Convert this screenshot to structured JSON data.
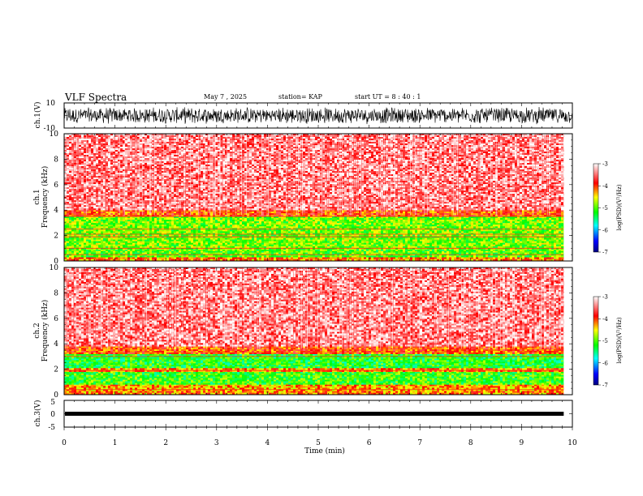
{
  "header": {
    "title": "VLF Spectra",
    "date": "May 7  , 2025",
    "station": "station= KAP",
    "start_time": "start  UT  =   8  : 40 : 1"
  },
  "chart_data": [
    {
      "type": "line",
      "panel": "ch1-waveform",
      "ylabel": "ch.1(V)",
      "ylim": [
        -10,
        10
      ],
      "yticks": [
        "10",
        "-10"
      ],
      "xlim": [
        0,
        10
      ],
      "signal": "broadband noise, amplitude approx ±6 V"
    },
    {
      "type": "heatmap",
      "panel": "ch1-spectrogram",
      "ylabel": "ch.1\nFrequency (kHz)",
      "ylim": [
        0,
        10
      ],
      "yticks": [
        "0",
        "2",
        "4",
        "6",
        "8",
        "10"
      ],
      "xlim": [
        0,
        9.83
      ],
      "bands": [
        {
          "from": 0.0,
          "to": 0.3,
          "level": -4.2
        },
        {
          "from": 0.3,
          "to": 0.9,
          "level": -5.0
        },
        {
          "from": 0.9,
          "to": 3.5,
          "level": -4.9
        },
        {
          "from": 3.5,
          "to": 4.0,
          "level": -4.0
        },
        {
          "from": 4.0,
          "to": 10.0,
          "level": -3.4
        }
      ],
      "lines_khz": [
        0.5,
        1.0,
        1.9,
        2.1,
        2.5,
        3.5
      ],
      "colorbar": {
        "label": "log(PSD)(V²/Hz)",
        "range": [
          -7,
          -3
        ],
        "ticks": [
          "-3",
          "-4",
          "-5",
          "-6",
          "-7"
        ]
      }
    },
    {
      "type": "heatmap",
      "panel": "ch2-spectrogram",
      "ylabel": "ch.2\nFrequency (kHz)",
      "ylim": [
        0,
        10
      ],
      "yticks": [
        "0",
        "2",
        "4",
        "6",
        "8",
        "10"
      ],
      "xlim": [
        0,
        9.83
      ],
      "bands": [
        {
          "from": 0.0,
          "to": 0.3,
          "level": -4.2
        },
        {
          "from": 0.3,
          "to": 0.8,
          "level": -4.3
        },
        {
          "from": 0.8,
          "to": 1.8,
          "level": -5.1
        },
        {
          "from": 1.8,
          "to": 2.1,
          "level": -4.2
        },
        {
          "from": 2.1,
          "to": 3.2,
          "level": -5.2
        },
        {
          "from": 3.2,
          "to": 3.8,
          "level": -4.0
        },
        {
          "from": 3.8,
          "to": 10.0,
          "level": -3.4
        }
      ],
      "lines_khz": [
        0.4,
        1.9,
        3.0
      ],
      "colorbar": {
        "label": "log(PSD)(V²/Hz)",
        "range": [
          -7,
          -3
        ],
        "ticks": [
          "-3",
          "-4",
          "-5",
          "-6",
          "-7"
        ]
      }
    },
    {
      "type": "line",
      "panel": "ch3-waveform",
      "ylabel": "ch.3(V)",
      "ylim": [
        -5,
        5
      ],
      "yticks": [
        "5",
        "0",
        "-5"
      ],
      "xlim": [
        0,
        10
      ],
      "level": 0,
      "signal": "flat trace near 0 V, thick band"
    }
  ],
  "xaxis": {
    "xlabel": "Time  (min)",
    "xlim": [
      0,
      10
    ],
    "xticks": [
      "0",
      "1",
      "2",
      "3",
      "4",
      "5",
      "6",
      "7",
      "8",
      "9",
      "10"
    ]
  },
  "colors": {
    "scale": [
      "#000080",
      "#0000ff",
      "#00ffff",
      "#00ff00",
      "#ffff00",
      "#ff0000",
      "#ffffff"
    ]
  }
}
